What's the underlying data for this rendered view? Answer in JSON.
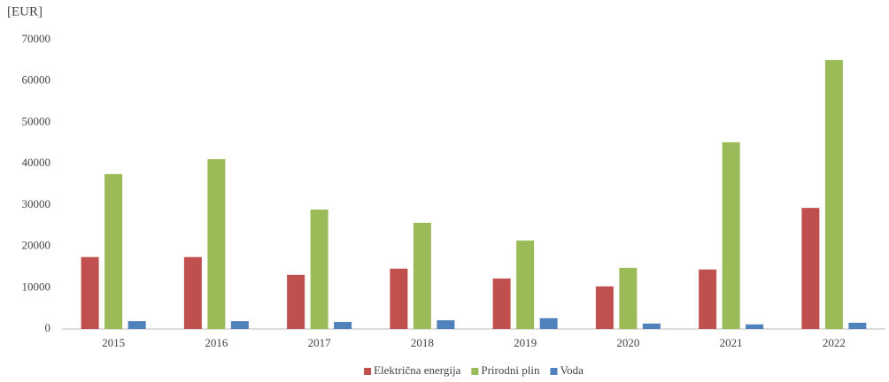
{
  "chart_data": {
    "type": "bar",
    "y_axis_label": "[EUR]",
    "categories": [
      "2015",
      "2016",
      "2017",
      "2018",
      "2019",
      "2020",
      "2021",
      "2022"
    ],
    "series": [
      {
        "name": "Električna energija",
        "color": "#c0504d",
        "values": [
          17400,
          17400,
          13100,
          14600,
          12200,
          10300,
          14400,
          29300
        ]
      },
      {
        "name": "Prirodni plin",
        "color": "#9bbb59",
        "values": [
          37500,
          41100,
          28900,
          25700,
          21400,
          14800,
          45200,
          65100
        ]
      },
      {
        "name": "Voda",
        "color": "#4f81bd",
        "values": [
          1900,
          1900,
          1700,
          2100,
          2600,
          1300,
          1100,
          1500
        ]
      }
    ],
    "ylim": [
      0,
      70000
    ],
    "yticks": [
      0,
      10000,
      20000,
      30000,
      40000,
      50000,
      60000,
      70000
    ],
    "grid": false,
    "legend": "bottom"
  }
}
